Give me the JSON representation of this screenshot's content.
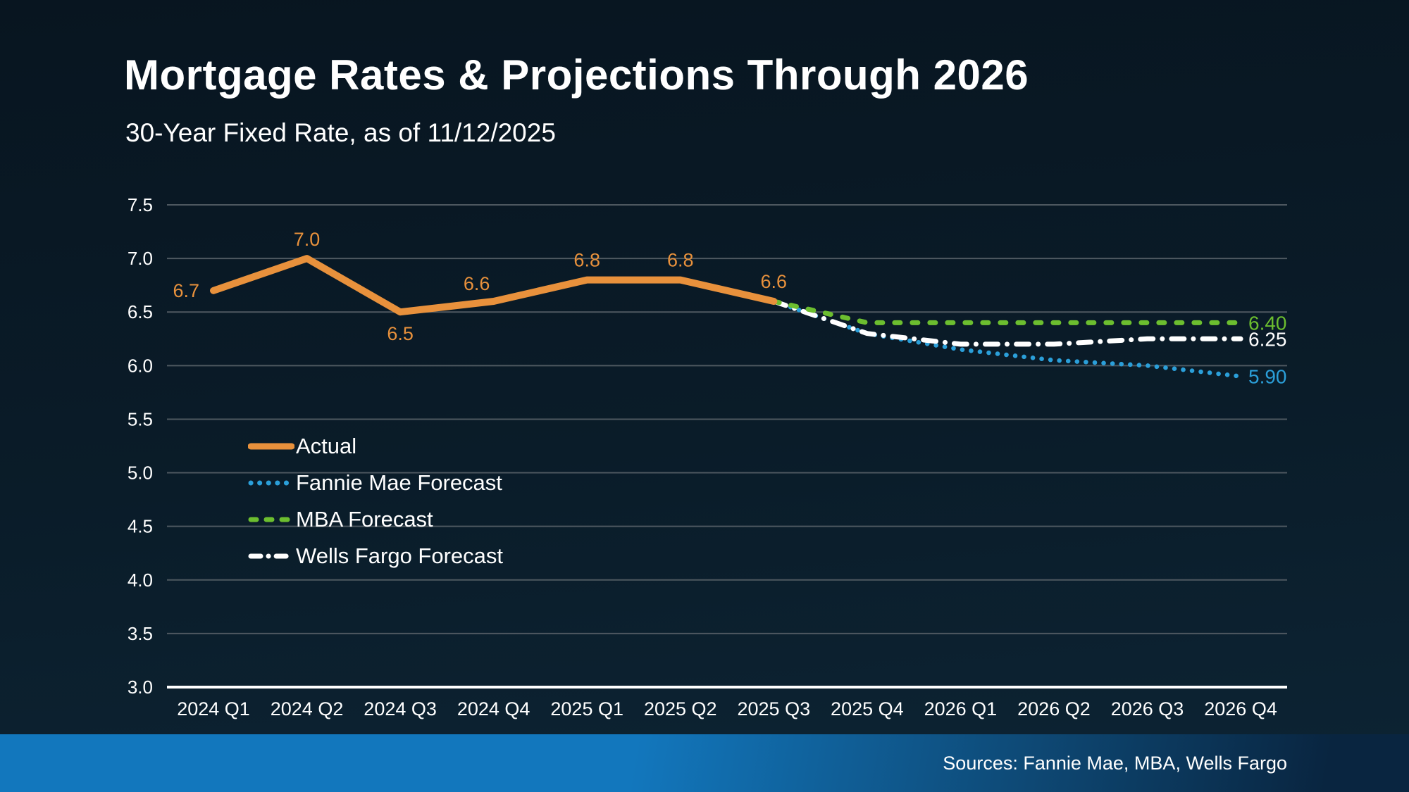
{
  "header": {
    "title": "Mortgage Rates & Projections Through 2026",
    "subtitle": "30-Year Fixed Rate, as of 11/12/2025"
  },
  "footer": {
    "sources": "Sources: Fannie Mae, MBA, Wells Fargo"
  },
  "colors": {
    "background_top": "#081520",
    "background_bottom": "#0D2434",
    "gridline": "#4E5860",
    "axis_line": "#FFFFFF",
    "text": "#FFFFFF",
    "actual": "#E8913C",
    "fannie_mae": "#2B9FD9",
    "mba": "#6CBE2F",
    "wells_fargo": "#FFFFFF",
    "footer_left": "#1277BD",
    "footer_right": "#092540"
  },
  "chart_data": {
    "type": "line",
    "title": "Mortgage Rates & Projections Through 2026",
    "subtitle": "30-Year Fixed Rate, as of 11/12/2025",
    "categories": [
      "2024 Q1",
      "2024 Q2",
      "2024 Q3",
      "2024 Q4",
      "2025 Q1",
      "2025 Q2",
      "2025 Q3",
      "2025 Q4",
      "2026 Q1",
      "2026 Q2",
      "2026 Q3",
      "2026 Q4"
    ],
    "ylim": [
      3.0,
      7.5
    ],
    "ytick_step": 0.5,
    "grid": true,
    "legend_position": "inside-left",
    "series": [
      {
        "name": "Actual",
        "style": "solid",
        "color": "#E8913C",
        "start_index": 0,
        "values": [
          6.7,
          7.0,
          6.5,
          6.6,
          6.8,
          6.8,
          6.6
        ],
        "point_labels": [
          "6.7",
          "7.0",
          "6.5",
          "6.6",
          "6.8",
          "6.8",
          "6.6"
        ]
      },
      {
        "name": "Fannie Mae Forecast",
        "style": "dotted",
        "color": "#2B9FD9",
        "start_index": 6,
        "values": [
          6.6,
          6.3,
          6.15,
          6.05,
          6.0,
          5.9
        ],
        "end_label": "5.90"
      },
      {
        "name": "MBA Forecast",
        "style": "dashed",
        "color": "#6CBE2F",
        "start_index": 6,
        "values": [
          6.6,
          6.4,
          6.4,
          6.4,
          6.4,
          6.4
        ],
        "end_label": "6.40"
      },
      {
        "name": "Wells Fargo Forecast",
        "style": "dashdot",
        "color": "#FFFFFF",
        "start_index": 6,
        "values": [
          6.6,
          6.3,
          6.2,
          6.2,
          6.25,
          6.25
        ],
        "end_label": "6.25"
      }
    ]
  }
}
